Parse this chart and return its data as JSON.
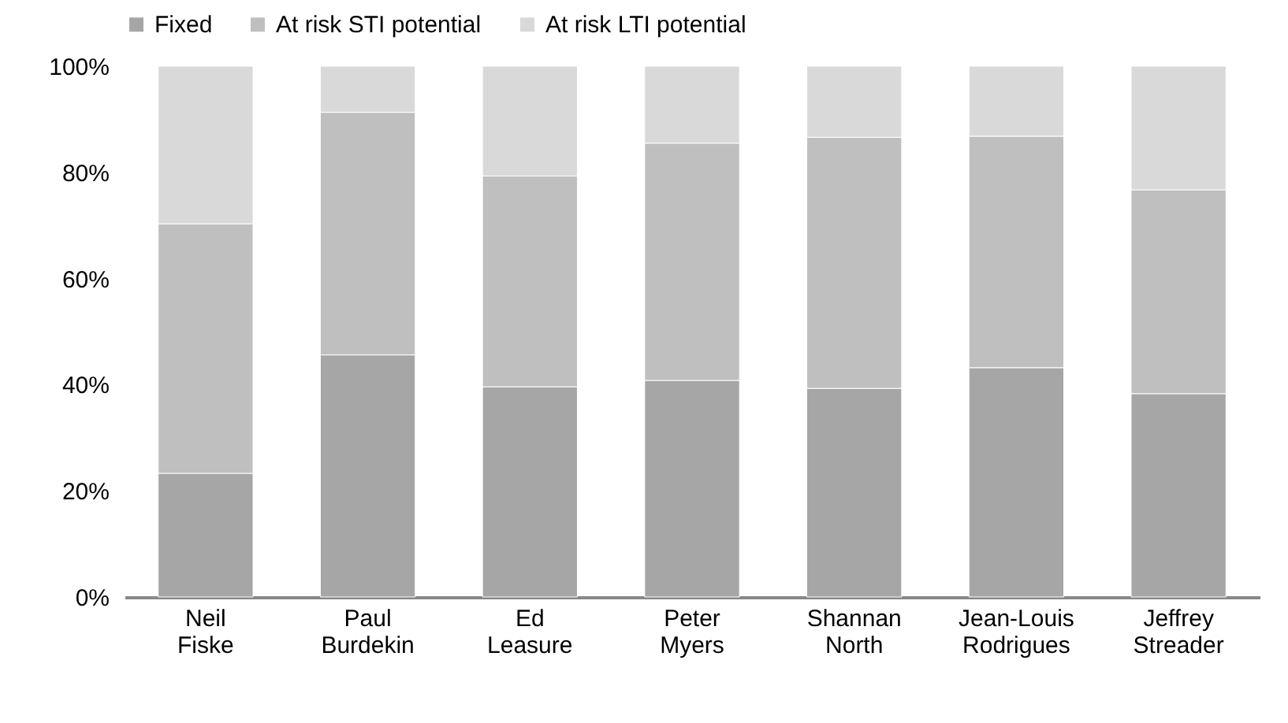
{
  "chart_data": {
    "type": "bar",
    "stacked": true,
    "categories": [
      "Neil Fiske",
      "Paul Burdekin",
      "Ed Leasure",
      "Peter Myers",
      "Shannan North",
      "Jean-Louis Rodrigues",
      "Jeffrey Streader"
    ],
    "series": [
      {
        "name": "Fixed",
        "color": "#a6a6a6",
        "values": [
          23.3,
          45.6,
          39.6,
          40.8,
          39.3,
          43.2,
          38.3
        ]
      },
      {
        "name": "At risk STI potential",
        "color": "#bfbfbf",
        "values": [
          47.0,
          45.7,
          39.7,
          44.7,
          47.3,
          43.6,
          38.4
        ]
      },
      {
        "name": "At risk LTI potential",
        "color": "#d9d9d9",
        "values": [
          29.7,
          8.7,
          20.7,
          14.5,
          13.4,
          13.2,
          23.3
        ]
      }
    ],
    "ylim": [
      0,
      100
    ],
    "yticks": [
      {
        "value": 0,
        "label": "0%"
      },
      {
        "value": 20,
        "label": "20%"
      },
      {
        "value": 40,
        "label": "40%"
      },
      {
        "value": 60,
        "label": "60%"
      },
      {
        "value": 80,
        "label": "80%"
      },
      {
        "value": 100,
        "label": "100%"
      }
    ],
    "grid": false,
    "legend": "top"
  }
}
